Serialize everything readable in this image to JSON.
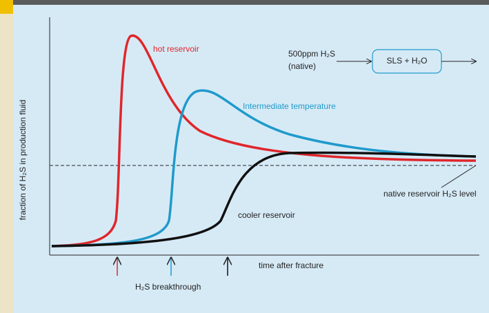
{
  "y_axis_label": "fraction of H₂S in production fluid",
  "x_axis_label": "time after fracture",
  "curves": {
    "hot": "hot reservoir",
    "intermediate": "Intermediate temperature",
    "cooler": "cooler reservoir"
  },
  "native_level": "native reservoir H₂S level",
  "breakthrough": "H₂S breakthrough",
  "reaction": {
    "input": "500ppm H₂S",
    "input_note": "(native)",
    "product": "SLS + H₂O"
  }
}
